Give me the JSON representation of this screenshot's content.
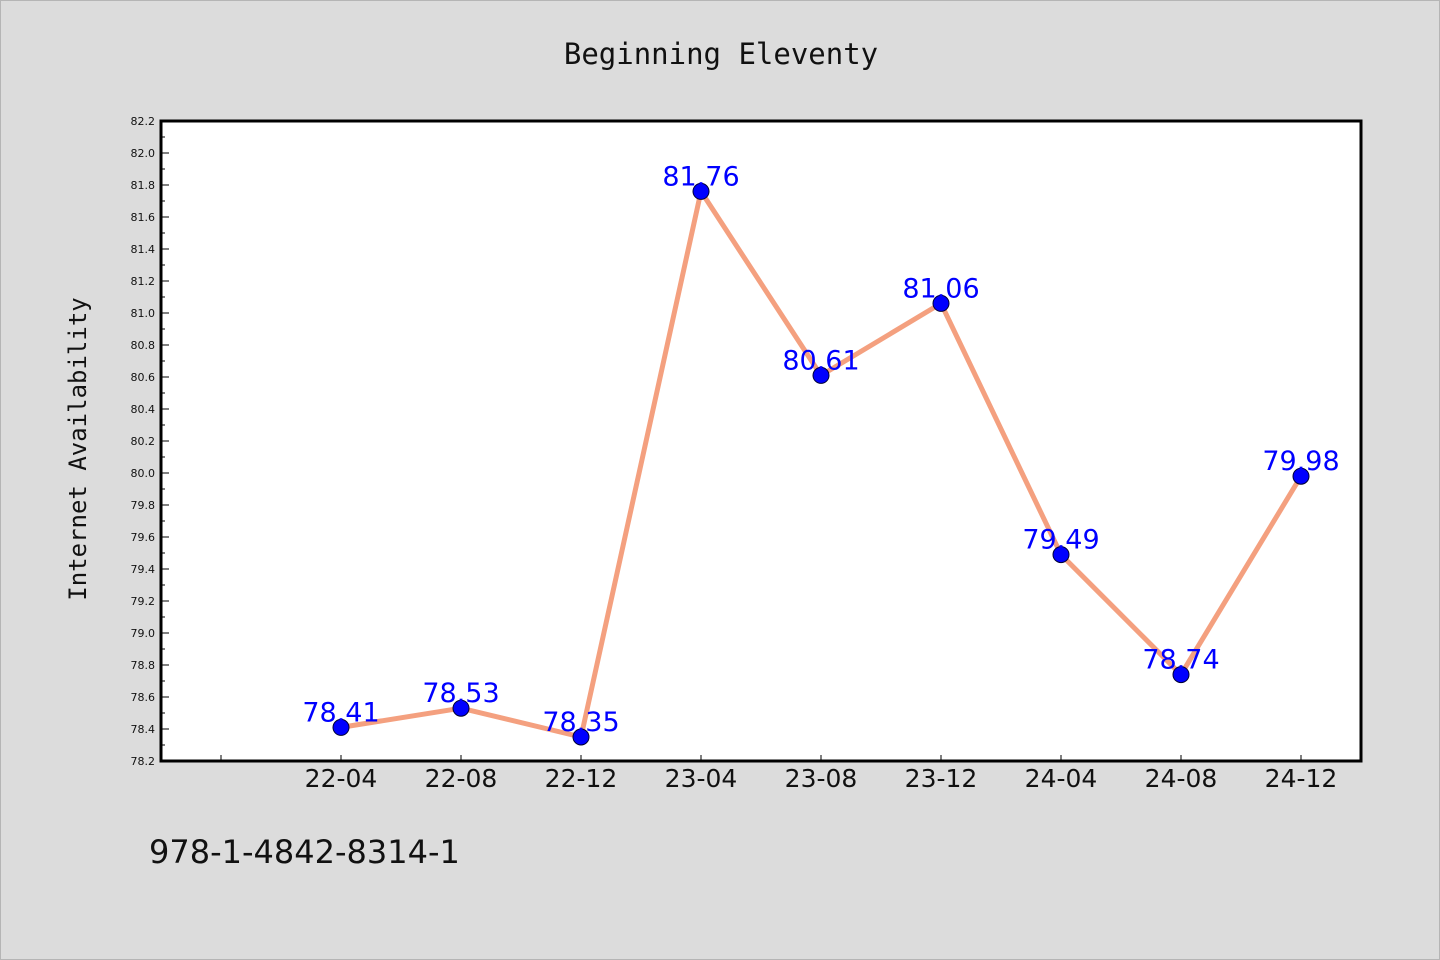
{
  "footnote": "978-1-4842-8314-1",
  "chart_data": {
    "type": "line",
    "title": "Beginning Eleventy",
    "xlabel": "",
    "ylabel": "Internet Availability",
    "categories": [
      "22-04",
      "22-08",
      "22-12",
      "23-04",
      "23-08",
      "23-12",
      "24-04",
      "24-08",
      "24-12"
    ],
    "series": [
      {
        "values": [
          78.41,
          78.53,
          78.35,
          81.76,
          80.61,
          81.06,
          79.49,
          78.74,
          79.98
        ]
      }
    ],
    "data_labels": [
      "78.41",
      "78.53",
      "78.35",
      "81.76",
      "80.61",
      "81.06",
      "79.49",
      "78.74",
      "79.98"
    ],
    "ylim": [
      78.2,
      82.2
    ],
    "ytick_labels": [
      "78.2",
      "78.4",
      "78.6",
      "78.8",
      "79.0",
      "79.2",
      "79.4",
      "79.6",
      "79.8",
      "80.0",
      "80.2",
      "80.4",
      "80.6",
      "80.8",
      "81.0",
      "81.2",
      "81.4",
      "81.6",
      "81.8",
      "82.0",
      "82.2"
    ],
    "grid": false,
    "colors": {
      "line": "#f4a07f",
      "marker": "#0000ff",
      "data_label": "#0000ff",
      "background": "#dcdcdc",
      "plot_background": "#ffffff"
    }
  }
}
